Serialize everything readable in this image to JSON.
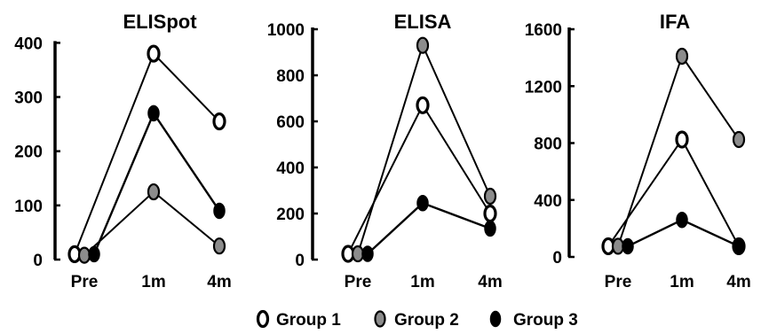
{
  "chart_data": [
    {
      "type": "line",
      "title": "ELISpot",
      "categories": [
        "Pre",
        "1m",
        "4m"
      ],
      "ylim": [
        0,
        430
      ],
      "yticks": [
        0,
        100,
        200,
        300,
        400
      ],
      "xlabel": "",
      "ylabel": "",
      "grid": false,
      "series": [
        {
          "name": "Group 1",
          "values": [
            10,
            380,
            255
          ]
        },
        {
          "name": "Group 2",
          "values": [
            8,
            125,
            25
          ]
        },
        {
          "name": "Group 3",
          "values": [
            10,
            270,
            90
          ]
        }
      ]
    },
    {
      "type": "line",
      "title": "ELISA",
      "categories": [
        "Pre",
        "1m",
        "4m"
      ],
      "ylim": [
        0,
        1000
      ],
      "yticks": [
        0,
        200,
        400,
        600,
        800,
        1000
      ],
      "xlabel": "",
      "ylabel": "",
      "grid": false,
      "series": [
        {
          "name": "Group 1",
          "values": [
            25,
            670,
            200
          ]
        },
        {
          "name": "Group 2",
          "values": [
            25,
            930,
            275
          ]
        },
        {
          "name": "Group 3",
          "values": [
            25,
            245,
            135
          ]
        }
      ]
    },
    {
      "type": "line",
      "title": "IFA",
      "categories": [
        "Pre",
        "1m",
        "4m"
      ],
      "ylim": [
        0,
        1600
      ],
      "yticks": [
        0,
        400,
        800,
        1200,
        1600
      ],
      "xlabel": "",
      "ylabel": "",
      "grid": false,
      "series": [
        {
          "name": "Group 1",
          "values": [
            75,
            825,
            75
          ]
        },
        {
          "name": "Group 2",
          "values": [
            75,
            1410,
            825
          ]
        },
        {
          "name": "Group 3",
          "values": [
            75,
            260,
            75
          ]
        }
      ]
    }
  ],
  "legend": {
    "placement": "bottom-center",
    "items": [
      {
        "label": "Group 1",
        "marker": "hollow",
        "color": "#000000"
      },
      {
        "label": "Group 2",
        "marker": "gray",
        "color": "#8c8c8c"
      },
      {
        "label": "Group 3",
        "marker": "filled",
        "color": "#000000"
      }
    ]
  },
  "colors": {
    "line": "#000000",
    "group2_fill": "#8c8c8c",
    "hollow_fill": "#ffffff"
  }
}
